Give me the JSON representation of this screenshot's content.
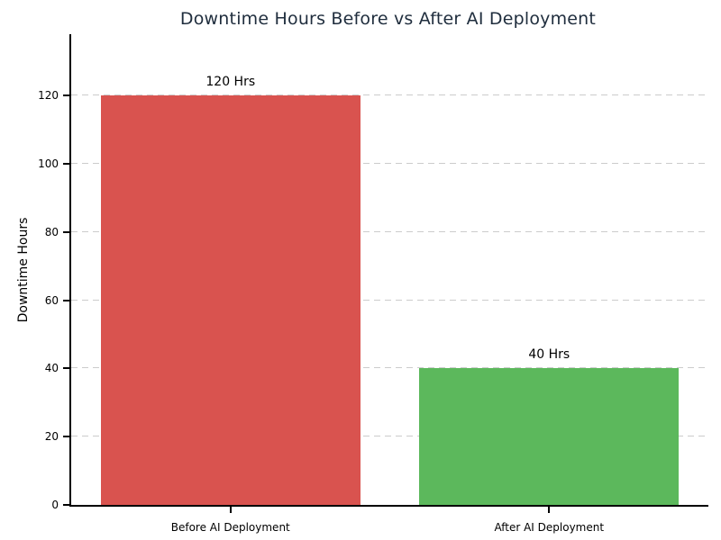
{
  "chart_data": {
    "type": "bar",
    "title": "Downtime Hours Before vs After AI Deployment",
    "categories": [
      "Before AI Deployment",
      "After AI Deployment"
    ],
    "values": [
      120,
      40
    ],
    "bar_value_labels": [
      "120 Hrs",
      "40 Hrs"
    ],
    "bar_colors": [
      "#d9534f",
      "#5cb85c"
    ],
    "xlabel": "",
    "ylabel": "Downtime Hours",
    "ylim": [
      0,
      138
    ],
    "yticks": [
      0,
      20,
      40,
      60,
      80,
      100,
      120
    ],
    "grid": "horizontal-dashed",
    "legend": "none",
    "colors": {
      "title": "#1f2d3d",
      "grid": "#cccccc",
      "axis": "#000000",
      "tick_text": "#000000",
      "background": "#ffffff"
    }
  }
}
